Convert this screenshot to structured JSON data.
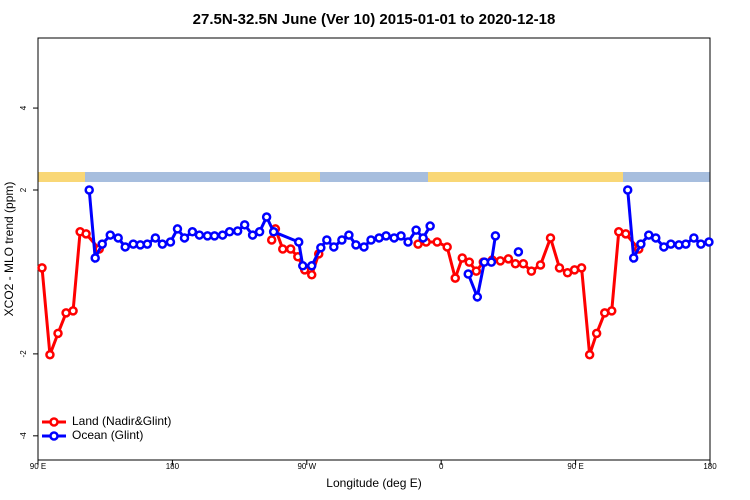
{
  "chart_data": {
    "type": "line",
    "title": "27.5N-32.5N June (Ver 10)   2015-01-01 to 2020-12-18",
    "x_label": "Longitude (deg E)",
    "y_label": "XCO2 - MLO trend (ppm)",
    "xlim": [
      90,
      540
    ],
    "ylim": [
      -4.59,
      5.71
    ],
    "xticks": [
      {
        "value": 90,
        "label": "90 E"
      },
      180,
      {
        "value": 270,
        "label": "90 W"
      },
      {
        "value": 360,
        "label": "0"
      },
      {
        "value": 450,
        "label": "90 E"
      },
      {
        "value": 540,
        "label": "180"
      }
    ],
    "yticks": [
      -4,
      -2,
      2,
      4
    ],
    "legend": "bottom-left",
    "series": [
      {
        "name": "Land (Nadir&Glint)",
        "color": "#ff0000",
        "x": [
          92.7,
          98,
          103.4,
          108.8,
          113.5,
          118.2,
          122.2,
          131,
          200,
          246.5,
          249,
          253.9,
          259.2,
          264,
          268.6,
          273.3,
          278,
          310,
          344.5,
          349.9,
          357.3,
          364,
          369.4,
          374.1,
          378.8,
          383.5,
          388.2,
          394.2,
          399.6,
          405,
          409.7,
          415,
          420.4,
          426.5,
          433.2,
          439.2,
          444.6,
          449.3,
          454,
          459.4,
          464.1,
          469.5,
          474.2,
          478.9,
          483.6,
          492.3
        ],
        "values": [
          0.1,
          -2.02,
          -1.5,
          -1.0,
          -0.95,
          0.98,
          0.93,
          0.56,
          null,
          0.78,
          1.05,
          0.56,
          0.56,
          0.37,
          0.05,
          -0.07,
          0.44,
          null,
          0.68,
          0.73,
          0.73,
          0.61,
          -0.15,
          0.34,
          0.24,
          0.02,
          0.24,
          0.29,
          0.27,
          0.32,
          0.2,
          0.2,
          0.02,
          0.17,
          0.83,
          0.1,
          -0.02,
          0.05,
          0.1,
          -2.02,
          -1.5,
          -1.0,
          -0.95,
          0.98,
          0.93,
          0.56
        ]
      },
      {
        "name": "Ocean (Glint)",
        "color": "#0000ff",
        "x": [
          124.3,
          128.3,
          133,
          138.4,
          143.7,
          148.4,
          153.8,
          158.5,
          163.2,
          168.6,
          173.3,
          178.7,
          183.4,
          188.1,
          193.4,
          198.1,
          203.5,
          208.2,
          213.6,
          218.3,
          223.7,
          228.4,
          233.7,
          238.4,
          243.1,
          247.8,
          264.6,
          267.3,
          273.3,
          279.4,
          283.4,
          288.1,
          293.5,
          298.2,
          302.9,
          308.3,
          313,
          318.4,
          323.1,
          328.5,
          333.1,
          337.8,
          343.2,
          347.9,
          352.6,
          365,
          378.1,
          384.2,
          388.9,
          393.6,
          396.3,
          404,
          411.7,
          450,
          484.9,
          488.9,
          493.7,
          499,
          503.7,
          509.1,
          513.8,
          519.2,
          523.8,
          529.2,
          533.9,
          539.3
        ],
        "values": [
          2.0,
          0.34,
          0.68,
          0.9,
          0.83,
          0.61,
          0.68,
          0.66,
          0.68,
          0.83,
          0.68,
          0.73,
          1.05,
          0.83,
          0.98,
          0.9,
          0.88,
          0.88,
          0.9,
          0.98,
          1.0,
          1.15,
          0.9,
          0.98,
          1.34,
          0.98,
          0.73,
          0.15,
          0.15,
          0.59,
          0.78,
          0.61,
          0.78,
          0.9,
          0.66,
          0.61,
          0.78,
          0.83,
          0.88,
          0.83,
          0.88,
          0.73,
          1.02,
          0.83,
          1.12,
          null,
          -0.05,
          -0.61,
          0.24,
          0.24,
          0.88,
          null,
          0.49,
          null,
          2.0,
          0.34,
          0.68,
          0.9,
          0.83,
          0.61,
          0.68,
          0.66,
          0.68,
          0.83,
          0.68,
          0.73
        ]
      }
    ]
  }
}
